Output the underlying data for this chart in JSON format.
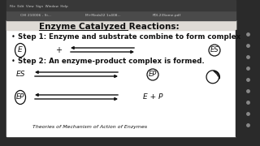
{
  "title": "Enzyme Catalyzed Reactions:",
  "step1_text": "Step 1: Enzyme and substrate combine to form complex",
  "step2_text": "Step 2: An enzyme-product complex is formed.",
  "bg_color": "#f0ece8",
  "sidebar_color": "#2a2a2a",
  "toolbar_color": "#3a3a3a",
  "content_bg": "#ffffff",
  "text_color": "#111111",
  "arrow_color": "#111111",
  "bottom_text": "Theories of Mechanism of Action of Enzymes",
  "font_size_title": 7.5,
  "font_size_step": 6.2,
  "font_size_label": 6.5,
  "tab1": "CHI 210006 - Si...",
  "tab2": "M+Meds02 1x408...",
  "tab3": "PDI-23Some.pdf",
  "menu_text": "File  Edit  View  Sign  Window  Help"
}
